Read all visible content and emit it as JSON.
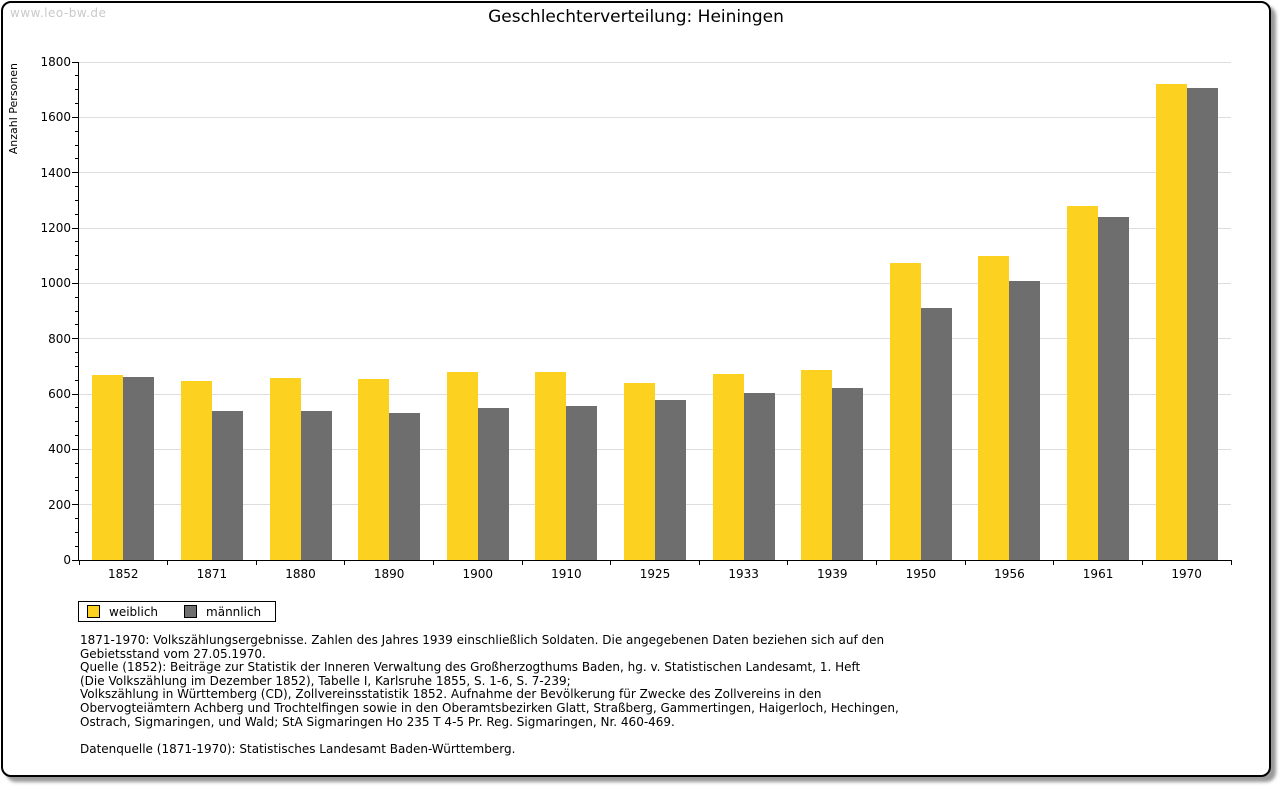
{
  "watermark": "www.leo-bw.de",
  "chart_data": {
    "type": "bar",
    "title": "Geschlechterverteilung: Heiningen",
    "xlabel": "",
    "ylabel": "Anzahl Personen",
    "ylim": [
      0,
      1800
    ],
    "ytick_step": 200,
    "yminor_step": 50,
    "yticks": [
      0,
      200,
      400,
      600,
      800,
      1000,
      1200,
      1400,
      1600,
      1800
    ],
    "grid": true,
    "legend_position": "bottom-left",
    "categories": [
      "1852",
      "1871",
      "1880",
      "1890",
      "1900",
      "1910",
      "1925",
      "1933",
      "1939",
      "1950",
      "1956",
      "1961",
      "1970"
    ],
    "series": [
      {
        "name": "weiblich",
        "color": "#FCD120",
        "values": [
          670,
          648,
          658,
          655,
          680,
          680,
          640,
          672,
          685,
          1075,
          1100,
          1280,
          1720
        ]
      },
      {
        "name": "männlich",
        "color": "#6E6E6E",
        "values": [
          660,
          540,
          538,
          530,
          550,
          558,
          580,
          605,
          622,
          910,
          1010,
          1240,
          1705
        ]
      }
    ]
  },
  "footnotes": [
    "1871-1970: Volkszählungsergebnisse. Zahlen des Jahres 1939 einschließlich Soldaten. Die angegebenen Daten beziehen sich auf den",
    "Gebietsstand vom 27.05.1970.",
    "Quelle (1852): Beiträge zur Statistik der Inneren Verwaltung des Großherzogthums Baden, hg. v. Statistischen Landesamt, 1. Heft",
    "(Die Volkszählung im Dezember 1852), Tabelle I, Karlsruhe 1855, S. 1-6, S. 7-239;",
    "Volkszählung in Württemberg (CD), Zollvereinsstatistik 1852. Aufnahme der Bevölkerung für Zwecke des Zollvereins in den",
    "Obervogteiämtern Achberg und Trochtelfingen sowie in den Oberamtsbezirken Glatt, Straßberg, Gammertingen, Haigerloch, Hechingen,",
    "Ostrach, Sigmaringen, und Wald; StA Sigmaringen Ho 235 T 4-5 Pr. Reg. Sigmaringen, Nr. 460-469.",
    "",
    "Datenquelle (1871-1970): Statistisches Landesamt Baden-Württemberg."
  ],
  "colors": {
    "grid": "#DDDDDD",
    "axis": "#000000",
    "watermark": "#C9C9C9",
    "background": "#FFFFFF",
    "frame_border": "#000000"
  }
}
